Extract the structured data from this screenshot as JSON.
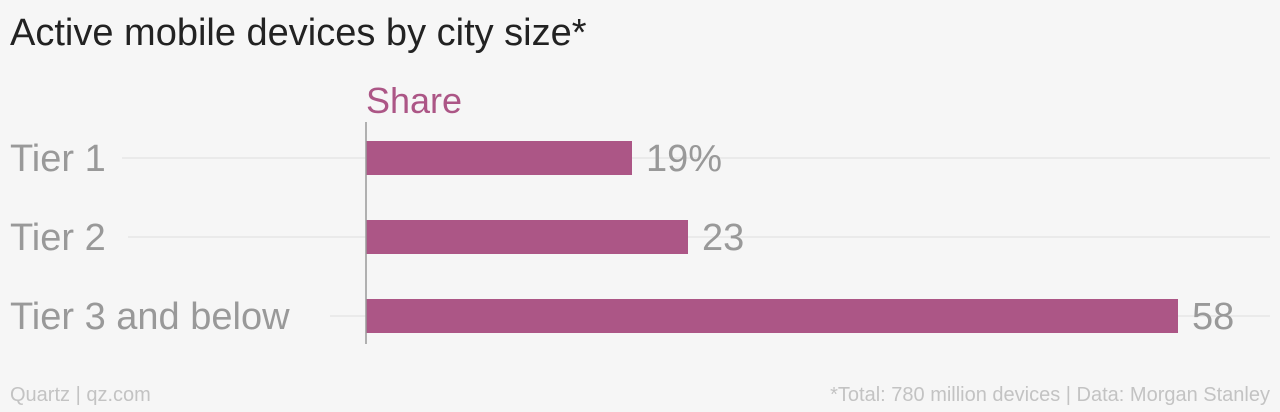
{
  "colors": {
    "bar": "#ac5686",
    "series_label": "#ac5686",
    "category_text": "#999999",
    "value_text": "#999999",
    "gridline": "#e6e6e6",
    "axis": "#999999"
  },
  "chart_data": {
    "type": "bar",
    "orientation": "horizontal",
    "title": "Active mobile devices by city size*",
    "categories": [
      "Tier 1",
      "Tier 2",
      "Tier 3 and below"
    ],
    "series": [
      {
        "name": "Share",
        "values": [
          19,
          23,
          58
        ],
        "value_labels": [
          "19%",
          "23",
          "58"
        ]
      }
    ],
    "xlim": [
      0,
      58
    ],
    "grid": true,
    "legend": "top"
  },
  "footer": {
    "source_left": "Quartz | qz.com",
    "source_right": "*Total: 780 million devices | Data: Morgan Stanley"
  }
}
